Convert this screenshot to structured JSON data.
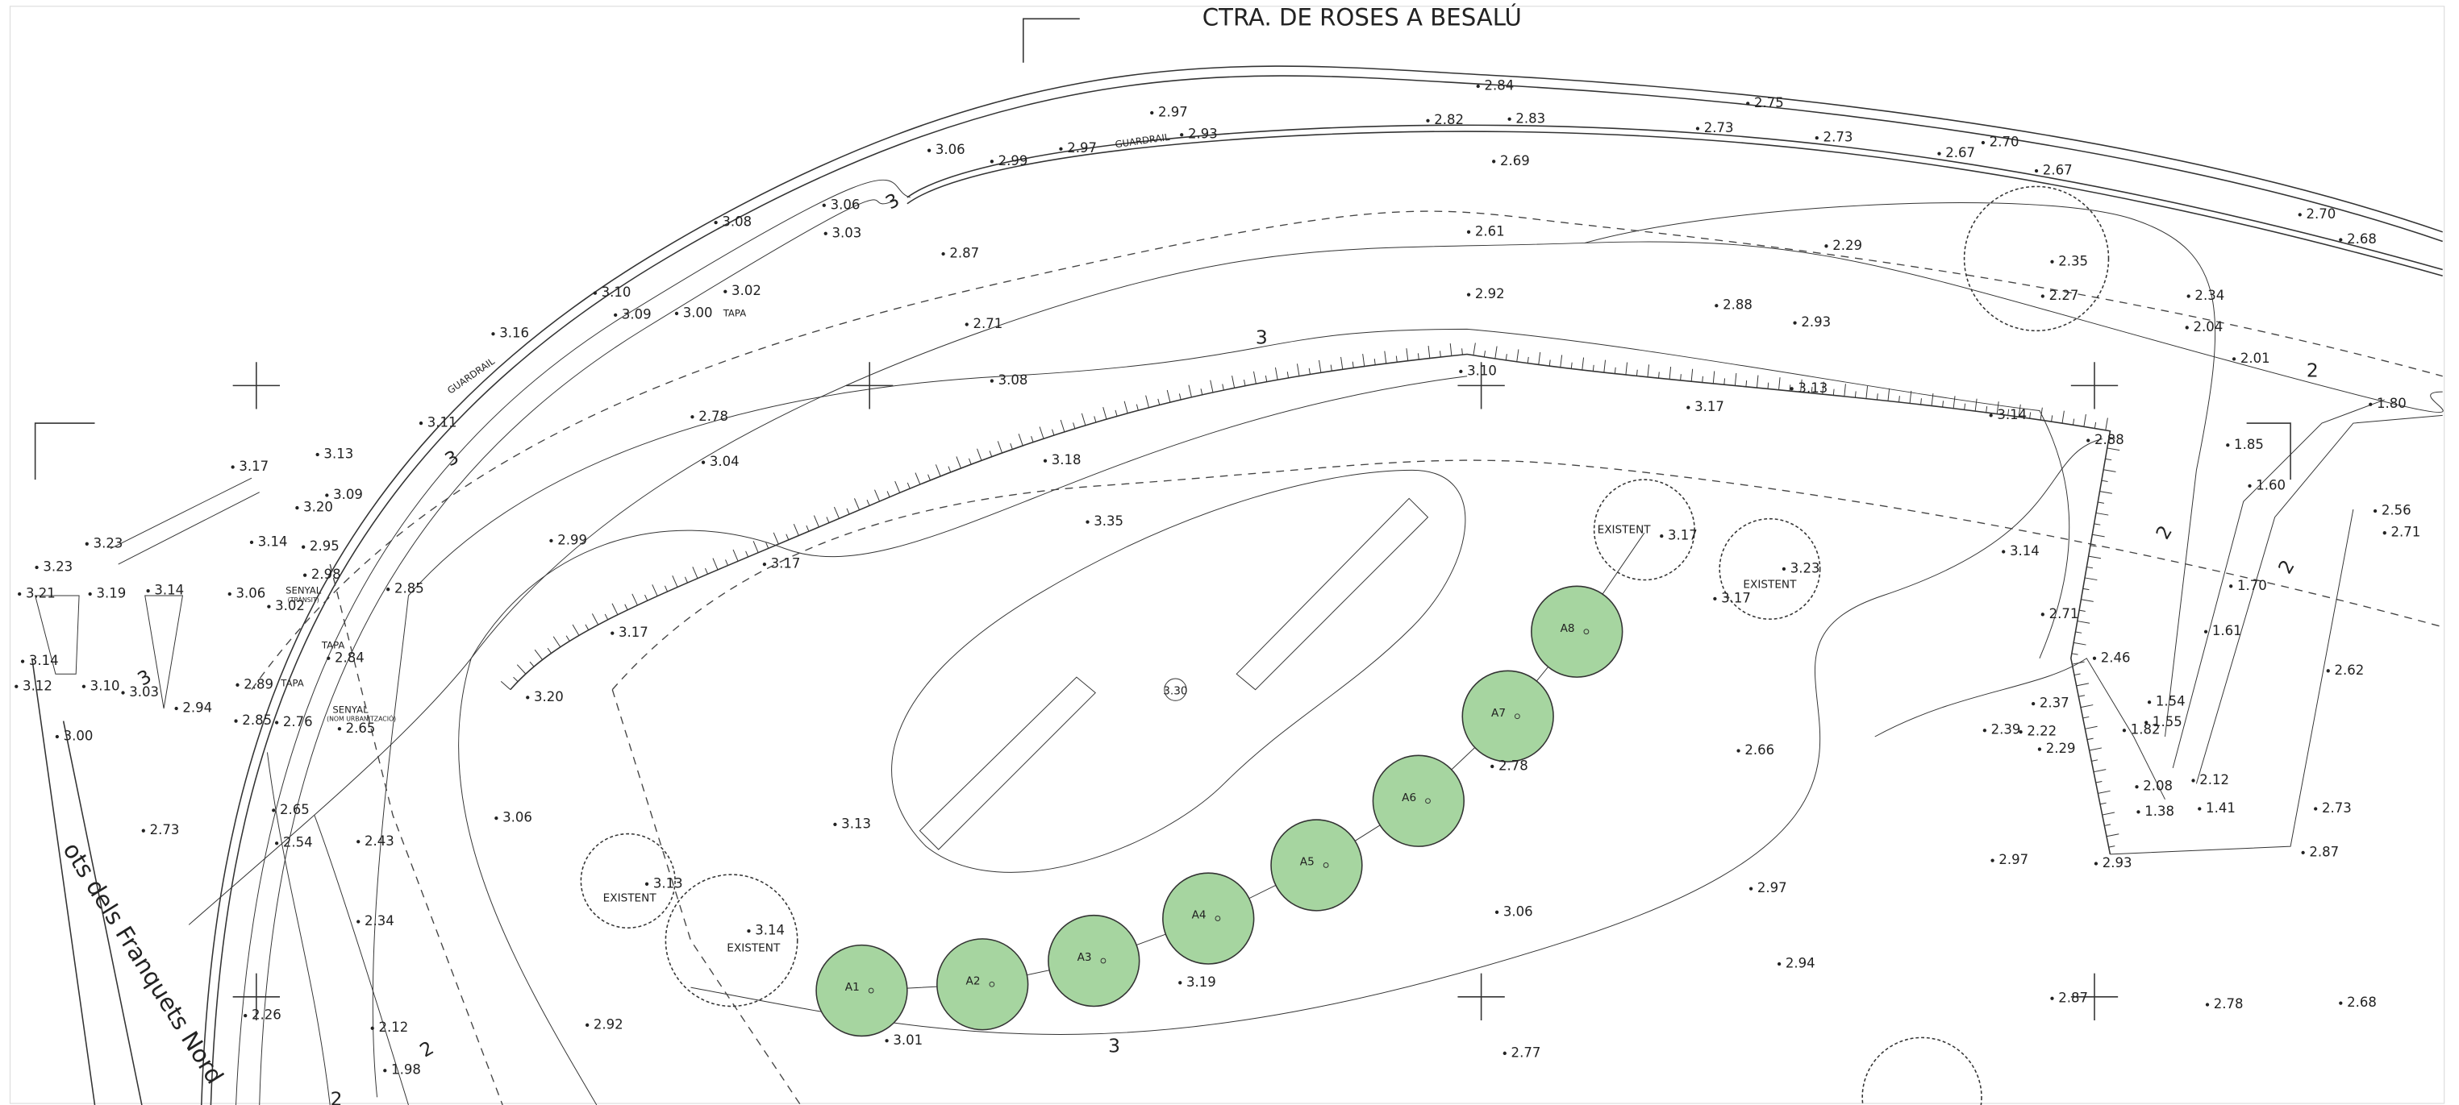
{
  "title": "CTRA. DE ROSES A BESALÚ",
  "street_label": "ots dels Franquets Nord",
  "trees": [
    "A1",
    "A2",
    "A3",
    "A4",
    "A5",
    "A6",
    "A7",
    "A8"
  ],
  "annotations": [
    "GUARDRAIL",
    "GUARDRAIL",
    "TAPA",
    "TAPA",
    "TAPA",
    "SENYAL",
    "(TRÀNSIT)",
    "SENYAL",
    "(NOM URBANITZACIÓ)",
    "EXISTENT",
    "EXISTENT",
    "EXISTENT",
    "EXISTENT",
    "3.30",
    "3",
    "3",
    "3",
    "3",
    "3",
    "2",
    "2",
    "2",
    "2",
    "2"
  ],
  "spot_elevations": [
    "2.84",
    "2.75",
    "2.97",
    "2.82",
    "2.83",
    "2.73",
    "2.73",
    "2.70",
    "3.06",
    "2.99",
    "2.97",
    "2.93",
    "2.67",
    "2.67",
    "2.69",
    "3.08",
    "3.06",
    "3.03",
    "2.87",
    "2.61",
    "2.29",
    "2.70",
    "2.68",
    "2.35",
    "2.27",
    "2.34",
    "2.04",
    "3.10",
    "3.09",
    "3.00",
    "3.02",
    "3.16",
    "2.92",
    "2.88",
    "2.93",
    "2.71",
    "2.01",
    "3.08",
    "3.10",
    "3.13",
    "3.17",
    "3.14",
    "2.88",
    "1.80",
    "1.85",
    "1.60",
    "2.56",
    "2.71",
    "3.11",
    "3.13",
    "3.17",
    "2.78",
    "3.04",
    "3.18",
    "3.20",
    "3.09",
    "3.14",
    "2.95",
    "2.98",
    "3.35",
    "3.17",
    "3.14",
    "3.23",
    "3.17",
    "1.70",
    "3.23",
    "3.23",
    "3.21",
    "3.19",
    "3.14",
    "3.06",
    "3.02",
    "2.99",
    "3.17",
    "2.85",
    "2.71",
    "1.61",
    "3.17",
    "2.84",
    "3.14",
    "3.12",
    "3.10",
    "3.03",
    "2.94",
    "2.46",
    "2.62",
    "2.89",
    "2.85",
    "2.76",
    "2.65",
    "3.20",
    "3.00",
    "2.78",
    "2.66",
    "2.39",
    "2.37",
    "2.22",
    "2.29",
    "1.54",
    "1.55",
    "1.82",
    "2.73",
    "2.65",
    "2.54",
    "2.43",
    "3.06",
    "3.13",
    "2.08",
    "2.12",
    "1.38",
    "1.41",
    "2.73",
    "2.87",
    "2.93",
    "2.97",
    "2.97",
    "3.13",
    "3.14",
    "3.06",
    "2.34",
    "2.94",
    "3.19",
    "2.87",
    "2.78",
    "2.68",
    "2.26",
    "2.92",
    "2.12",
    "3.01",
    "1.98",
    "2.77"
  ]
}
